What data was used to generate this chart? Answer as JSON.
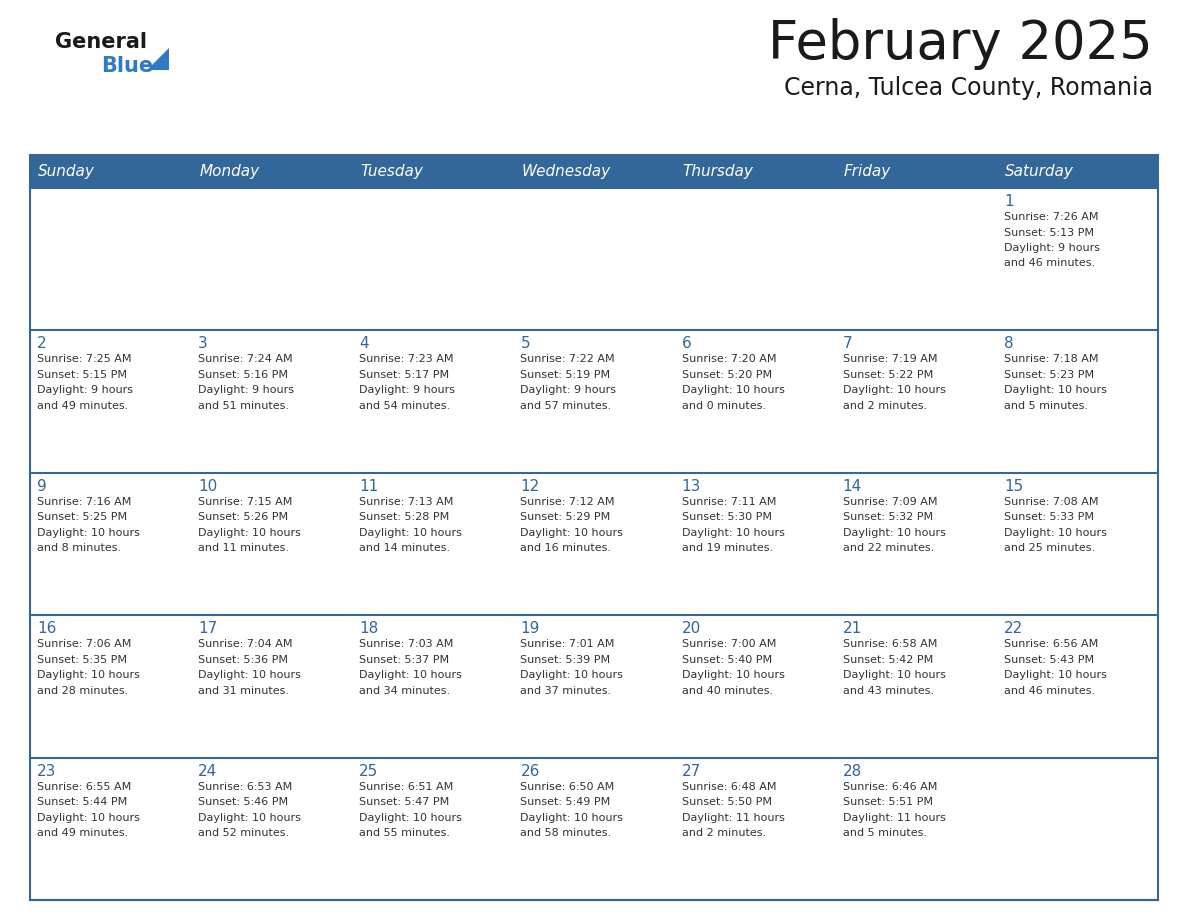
{
  "title": "February 2025",
  "subtitle": "Cerna, Tulcea County, Romania",
  "header_bg": "#336699",
  "header_text_color": "#FFFFFF",
  "cell_bg": "#FFFFFF",
  "border_color": "#336699",
  "row_line_color": "#336699",
  "title_color": "#1a1a1a",
  "subtitle_color": "#1a1a1a",
  "day_number_color": "#336699",
  "cell_text_color": "#333333",
  "days_of_week": [
    "Sunday",
    "Monday",
    "Tuesday",
    "Wednesday",
    "Thursday",
    "Friday",
    "Saturday"
  ],
  "weeks": [
    [
      {
        "day": null,
        "info": null
      },
      {
        "day": null,
        "info": null
      },
      {
        "day": null,
        "info": null
      },
      {
        "day": null,
        "info": null
      },
      {
        "day": null,
        "info": null
      },
      {
        "day": null,
        "info": null
      },
      {
        "day": 1,
        "info": "Sunrise: 7:26 AM\nSunset: 5:13 PM\nDaylight: 9 hours\nand 46 minutes."
      }
    ],
    [
      {
        "day": 2,
        "info": "Sunrise: 7:25 AM\nSunset: 5:15 PM\nDaylight: 9 hours\nand 49 minutes."
      },
      {
        "day": 3,
        "info": "Sunrise: 7:24 AM\nSunset: 5:16 PM\nDaylight: 9 hours\nand 51 minutes."
      },
      {
        "day": 4,
        "info": "Sunrise: 7:23 AM\nSunset: 5:17 PM\nDaylight: 9 hours\nand 54 minutes."
      },
      {
        "day": 5,
        "info": "Sunrise: 7:22 AM\nSunset: 5:19 PM\nDaylight: 9 hours\nand 57 minutes."
      },
      {
        "day": 6,
        "info": "Sunrise: 7:20 AM\nSunset: 5:20 PM\nDaylight: 10 hours\nand 0 minutes."
      },
      {
        "day": 7,
        "info": "Sunrise: 7:19 AM\nSunset: 5:22 PM\nDaylight: 10 hours\nand 2 minutes."
      },
      {
        "day": 8,
        "info": "Sunrise: 7:18 AM\nSunset: 5:23 PM\nDaylight: 10 hours\nand 5 minutes."
      }
    ],
    [
      {
        "day": 9,
        "info": "Sunrise: 7:16 AM\nSunset: 5:25 PM\nDaylight: 10 hours\nand 8 minutes."
      },
      {
        "day": 10,
        "info": "Sunrise: 7:15 AM\nSunset: 5:26 PM\nDaylight: 10 hours\nand 11 minutes."
      },
      {
        "day": 11,
        "info": "Sunrise: 7:13 AM\nSunset: 5:28 PM\nDaylight: 10 hours\nand 14 minutes."
      },
      {
        "day": 12,
        "info": "Sunrise: 7:12 AM\nSunset: 5:29 PM\nDaylight: 10 hours\nand 16 minutes."
      },
      {
        "day": 13,
        "info": "Sunrise: 7:11 AM\nSunset: 5:30 PM\nDaylight: 10 hours\nand 19 minutes."
      },
      {
        "day": 14,
        "info": "Sunrise: 7:09 AM\nSunset: 5:32 PM\nDaylight: 10 hours\nand 22 minutes."
      },
      {
        "day": 15,
        "info": "Sunrise: 7:08 AM\nSunset: 5:33 PM\nDaylight: 10 hours\nand 25 minutes."
      }
    ],
    [
      {
        "day": 16,
        "info": "Sunrise: 7:06 AM\nSunset: 5:35 PM\nDaylight: 10 hours\nand 28 minutes."
      },
      {
        "day": 17,
        "info": "Sunrise: 7:04 AM\nSunset: 5:36 PM\nDaylight: 10 hours\nand 31 minutes."
      },
      {
        "day": 18,
        "info": "Sunrise: 7:03 AM\nSunset: 5:37 PM\nDaylight: 10 hours\nand 34 minutes."
      },
      {
        "day": 19,
        "info": "Sunrise: 7:01 AM\nSunset: 5:39 PM\nDaylight: 10 hours\nand 37 minutes."
      },
      {
        "day": 20,
        "info": "Sunrise: 7:00 AM\nSunset: 5:40 PM\nDaylight: 10 hours\nand 40 minutes."
      },
      {
        "day": 21,
        "info": "Sunrise: 6:58 AM\nSunset: 5:42 PM\nDaylight: 10 hours\nand 43 minutes."
      },
      {
        "day": 22,
        "info": "Sunrise: 6:56 AM\nSunset: 5:43 PM\nDaylight: 10 hours\nand 46 minutes."
      }
    ],
    [
      {
        "day": 23,
        "info": "Sunrise: 6:55 AM\nSunset: 5:44 PM\nDaylight: 10 hours\nand 49 minutes."
      },
      {
        "day": 24,
        "info": "Sunrise: 6:53 AM\nSunset: 5:46 PM\nDaylight: 10 hours\nand 52 minutes."
      },
      {
        "day": 25,
        "info": "Sunrise: 6:51 AM\nSunset: 5:47 PM\nDaylight: 10 hours\nand 55 minutes."
      },
      {
        "day": 26,
        "info": "Sunrise: 6:50 AM\nSunset: 5:49 PM\nDaylight: 10 hours\nand 58 minutes."
      },
      {
        "day": 27,
        "info": "Sunrise: 6:48 AM\nSunset: 5:50 PM\nDaylight: 11 hours\nand 2 minutes."
      },
      {
        "day": 28,
        "info": "Sunrise: 6:46 AM\nSunset: 5:51 PM\nDaylight: 11 hours\nand 5 minutes."
      },
      {
        "day": null,
        "info": null
      }
    ]
  ]
}
